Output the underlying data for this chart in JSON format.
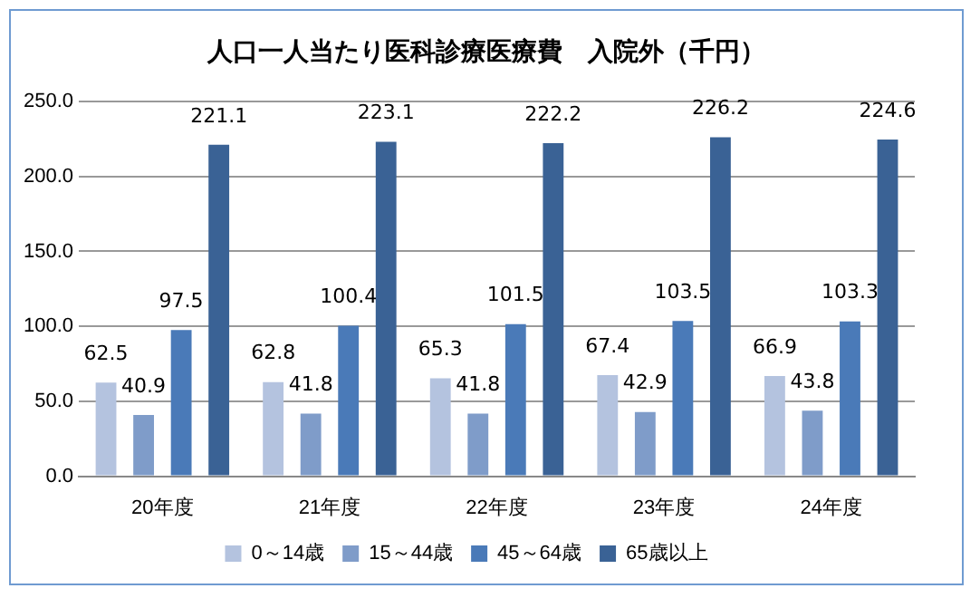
{
  "chart_data": {
    "type": "bar",
    "title": "人口一人当たり医科診療医療費　入院外（千円）",
    "categories": [
      "20年度",
      "21年度",
      "22年度",
      "23年度",
      "24年度"
    ],
    "series": [
      {
        "name": "0～14歳",
        "color": "#b4c3df",
        "values": [
          62.5,
          62.8,
          65.3,
          67.4,
          66.9
        ]
      },
      {
        "name": "15～44歳",
        "color": "#7f9cc9",
        "values": [
          40.9,
          41.8,
          41.8,
          42.9,
          43.8
        ]
      },
      {
        "name": "45～64歳",
        "color": "#4a7ab8",
        "values": [
          97.5,
          100.4,
          101.5,
          103.5,
          103.3
        ]
      },
      {
        "name": "65歳以上",
        "color": "#3a6295",
        "values": [
          221.1,
          223.1,
          222.2,
          226.2,
          224.6
        ]
      }
    ],
    "ylim": [
      0,
      250
    ],
    "yticks": [
      {
        "value": 0,
        "label": "0.0"
      },
      {
        "value": 50,
        "label": "50.0"
      },
      {
        "value": 100,
        "label": "100.0"
      },
      {
        "value": 150,
        "label": "150.0"
      },
      {
        "value": 200,
        "label": "200.0"
      },
      {
        "value": 250,
        "label": "250.0"
      }
    ],
    "grid": "y",
    "legend": "bottom",
    "data_labels": true
  }
}
